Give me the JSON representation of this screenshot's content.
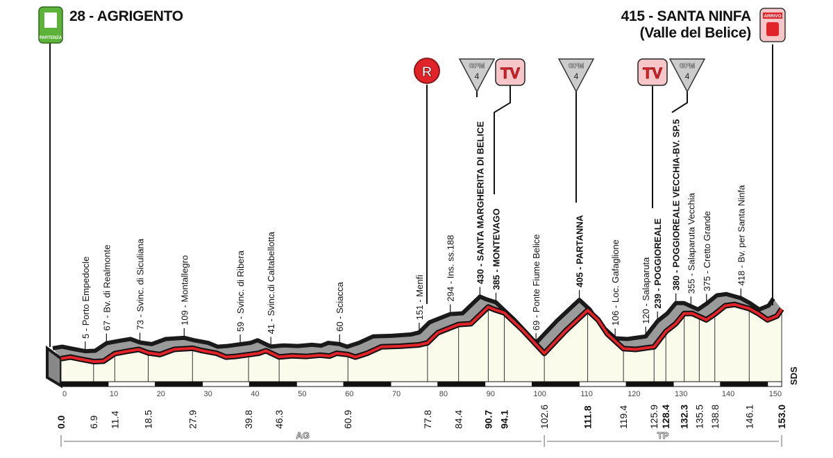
{
  "start": {
    "title": "28 - AGRIGENTO",
    "badge": "PARTENZA",
    "color": "#5db33a"
  },
  "finish": {
    "title": "415 - SANTA NINFA",
    "subtitle": "(Valle del Belice)",
    "badge": "ARRIVO",
    "color": "#e2232a"
  },
  "markers": [
    {
      "type": "R",
      "label": "R",
      "km": 77.8
    },
    {
      "type": "GPM",
      "label": "GPM",
      "category": "4",
      "km": 90.7
    },
    {
      "type": "TV",
      "label": "TV",
      "km": 94.1
    },
    {
      "type": "GPM",
      "label": "GPM",
      "category": "4",
      "km": 111.8
    },
    {
      "type": "TV",
      "label": "TV",
      "km": 125.9
    },
    {
      "type": "GPM",
      "label": "GPM",
      "category": "4",
      "km": 132.3
    }
  ],
  "provinces": [
    {
      "label": "AG",
      "from": 0,
      "to": 102.6
    },
    {
      "label": "TP",
      "from": 102.6,
      "to": 153.0
    }
  ],
  "sds": "SDS",
  "chart_data": {
    "type": "area",
    "title": "",
    "xlabel": "",
    "ylabel": "",
    "xlim": [
      0,
      153
    ],
    "x_ticks": [
      0,
      10,
      20,
      30,
      40,
      50,
      60,
      70,
      80,
      90,
      100,
      110,
      120,
      130,
      140,
      150
    ],
    "km_marks": [
      "0.0",
      "6.9",
      "11.4",
      "18.5",
      "27.9",
      "39.8",
      "46.3",
      "60.9",
      "77.8",
      "84.4",
      "90.7",
      "94.1",
      "102.6",
      "111.8",
      "119.4",
      "125.9",
      "128.4",
      "132.3",
      "135.5",
      "138.8",
      "146.1",
      "153.0"
    ],
    "km_marks_bold": [
      "0.0",
      "90.7",
      "94.1",
      "111.8",
      "128.4",
      "132.3",
      "153.0"
    ],
    "profile": [
      [
        0,
        28
      ],
      [
        2,
        40
      ],
      [
        4,
        25
      ],
      [
        6.9,
        5
      ],
      [
        9,
        8
      ],
      [
        11.4,
        67
      ],
      [
        14,
        85
      ],
      [
        16.5,
        100
      ],
      [
        18.5,
        73
      ],
      [
        21,
        60
      ],
      [
        24,
        100
      ],
      [
        27.9,
        109
      ],
      [
        30,
        90
      ],
      [
        33,
        70
      ],
      [
        35,
        40
      ],
      [
        37,
        45
      ],
      [
        39.8,
        59
      ],
      [
        42,
        70
      ],
      [
        43.5,
        90
      ],
      [
        46.3,
        41
      ],
      [
        49,
        50
      ],
      [
        52,
        45
      ],
      [
        55,
        55
      ],
      [
        57,
        48
      ],
      [
        58.5,
        70
      ],
      [
        60.9,
        60
      ],
      [
        62.5,
        40
      ],
      [
        65,
        70
      ],
      [
        68,
        120
      ],
      [
        72,
        125
      ],
      [
        76,
        135
      ],
      [
        77.8,
        151
      ],
      [
        80,
        230
      ],
      [
        84.4,
        294
      ],
      [
        87,
        300
      ],
      [
        90.7,
        430
      ],
      [
        92,
        410
      ],
      [
        94.1,
        385
      ],
      [
        98,
        250
      ],
      [
        102.6,
        69
      ],
      [
        107,
        240
      ],
      [
        111.8,
        405
      ],
      [
        114,
        330
      ],
      [
        116,
        220
      ],
      [
        119.4,
        106
      ],
      [
        122,
        100
      ],
      [
        125.9,
        120
      ],
      [
        128.4,
        239
      ],
      [
        130.5,
        300
      ],
      [
        132.3,
        380
      ],
      [
        134,
        380
      ],
      [
        135.5,
        355
      ],
      [
        137,
        330
      ],
      [
        138.8,
        375
      ],
      [
        141,
        440
      ],
      [
        143,
        450
      ],
      [
        146.1,
        418
      ],
      [
        148,
        380
      ],
      [
        150,
        330
      ],
      [
        152,
        360
      ],
      [
        153,
        415
      ]
    ],
    "waypoints": [
      {
        "km": 6.9,
        "alt": 5,
        "label": "5 - Porto Empedocle",
        "bold": false
      },
      {
        "km": 11.4,
        "alt": 67,
        "label": "67 - Bv. di Realmonte",
        "bold": false
      },
      {
        "km": 18.5,
        "alt": 73,
        "label": "73 - Svinc. di Siculiana",
        "bold": false
      },
      {
        "km": 27.9,
        "alt": 109,
        "label": "109 - Montallegro",
        "bold": false
      },
      {
        "km": 39.8,
        "alt": 59,
        "label": "59 - Svinc. di Ribera",
        "bold": false
      },
      {
        "km": 46.3,
        "alt": 41,
        "label": "41 - Svinc.di Caltabellotta",
        "bold": false
      },
      {
        "km": 60.9,
        "alt": 60,
        "label": "60 - Sciacca",
        "bold": false
      },
      {
        "km": 77.8,
        "alt": 151,
        "label": "151 - Menfi",
        "bold": false
      },
      {
        "km": 84.4,
        "alt": 294,
        "label": "294 - Ins. ss.188",
        "bold": false
      },
      {
        "km": 90.7,
        "alt": 430,
        "label": "430 - SANTA MARGHERITA DI BELICE",
        "bold": true
      },
      {
        "km": 94.1,
        "alt": 385,
        "label": "385 - MONTEVAGO",
        "bold": true
      },
      {
        "km": 102.6,
        "alt": 69,
        "label": "69 - Ponte Fiume Belice",
        "bold": false
      },
      {
        "km": 111.8,
        "alt": 405,
        "label": "405 - PARTANNA",
        "bold": true
      },
      {
        "km": 119.4,
        "alt": 106,
        "label": "106 - Loc. Gafaglione",
        "bold": false
      },
      {
        "km": 125.9,
        "alt": 120,
        "label": "120 - Salaparuta",
        "bold": false
      },
      {
        "km": 128.4,
        "alt": 239,
        "label": "239 - POGGIOREALE",
        "bold": true
      },
      {
        "km": 132.3,
        "alt": 380,
        "label": "380 - POGGIOREALE VECCHIA-BV. SP.5",
        "bold": true
      },
      {
        "km": 135.5,
        "alt": 355,
        "label": "355 - Salaparuta Vecchia",
        "bold": false
      },
      {
        "km": 138.8,
        "alt": 375,
        "label": "375 - Cretto Grande",
        "bold": false
      },
      {
        "km": 146.1,
        "alt": 418,
        "label": "418 - Bv. per Santa Ninfa",
        "bold": false
      }
    ],
    "colors": {
      "route": "#e2232a",
      "fill": "#fbfbeb",
      "shadow": "#9a9a9a"
    }
  }
}
